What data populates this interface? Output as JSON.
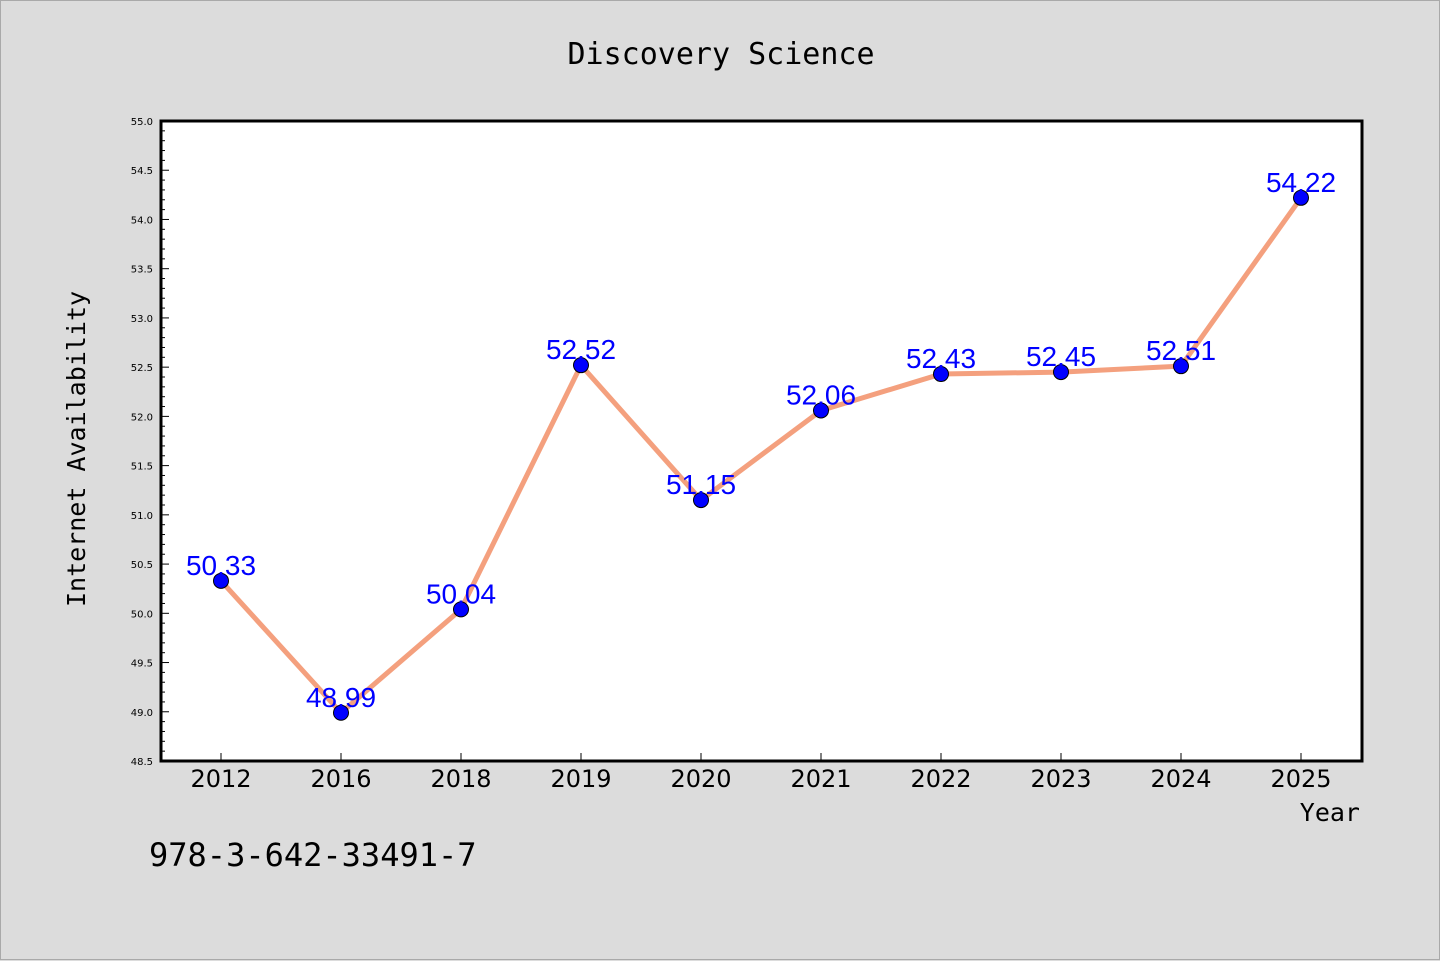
{
  "chart_data": {
    "type": "line",
    "title": "Discovery Science",
    "xlabel": "Year",
    "ylabel": "Internet Availability",
    "categories": [
      "2012",
      "2016",
      "2018",
      "2019",
      "2020",
      "2021",
      "2022",
      "2023",
      "2024",
      "2025"
    ],
    "values": [
      50.33,
      48.99,
      50.04,
      52.52,
      51.15,
      52.06,
      52.43,
      52.45,
      52.51,
      54.22
    ],
    "data_labels": [
      "50.33",
      "48.99",
      "50.04",
      "52.52",
      "51.15",
      "52.06",
      "52.43",
      "52.45",
      "52.51",
      "54.22"
    ],
    "ylim": [
      48.5,
      55.0
    ],
    "yticks": [
      "48.5",
      "49.0",
      "49.5",
      "50.0",
      "50.5",
      "51.0",
      "51.5",
      "52.0",
      "52.5",
      "53.0",
      "53.5",
      "54.0",
      "54.5",
      "55.0"
    ],
    "grid": false,
    "colors": {
      "line": "#f4a07e",
      "marker": "#0000ff",
      "label": "#0000ff",
      "background": "#dcdcdc",
      "plot_area": "#ffffff"
    }
  },
  "footer": {
    "isbn": "978-3-642-33491-7"
  }
}
